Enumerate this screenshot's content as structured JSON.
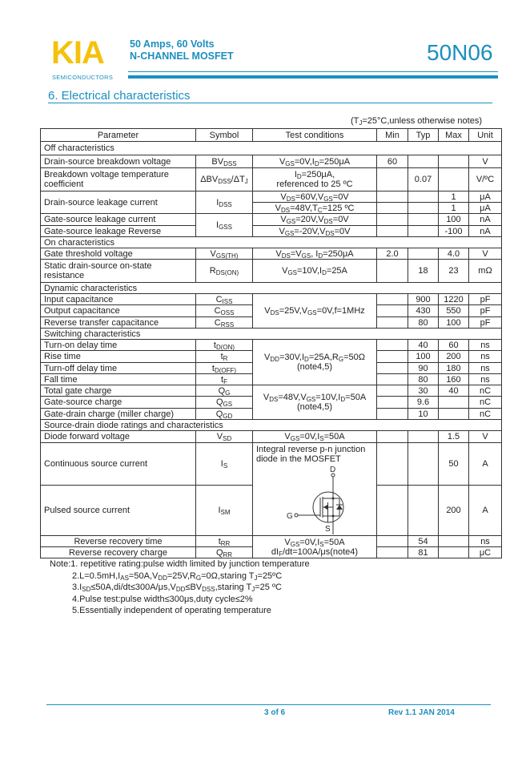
{
  "header": {
    "logo": "KIA",
    "logo_sub": "SEMICONDUCTORS",
    "subtitle_line1": "50 Amps, 60 Volts",
    "subtitle_line2": "N-CHANNEL MOSFET",
    "part_number": "50N06",
    "brand_color": "#1b8fbf",
    "logo_color": "#f4c20d"
  },
  "section_title": "6.  Electrical characteristics",
  "conditions_note": "(T_{J}=25°C,unless otherwise notes)",
  "table": {
    "columns": [
      "Parameter",
      "Symbol",
      "Test conditions",
      "Min",
      "Typ",
      "Max",
      "Unit"
    ],
    "rows": [
      {
        "section": "Off characteristics"
      },
      {
        "cells": [
          "Drain-source breakdown voltage",
          "BV_{DSS}",
          "V_{GS}=0V,I_{D}=250μA",
          "60",
          "",
          "",
          "V"
        ]
      },
      {
        "cells": [
          "Breakdown voltage temperature coefficient",
          "ΔBV_{DSS}/ΔT_{J}",
          "I_{D}=250μA,\nreferenced to 25 ºC",
          "",
          "0.07",
          "",
          "V/ºC"
        ]
      },
      {
        "cells": [
          "Drain-source leakage current",
          "I_{DSS}",
          "V_{DS}=60V,V_{GS}=0V",
          "",
          "",
          "1",
          "μA"
        ]
      },
      {
        "cells": [
          null,
          null,
          "V_{DS}=48V,T_{C}=125 ºC",
          "",
          "",
          "1",
          "μA"
        ]
      },
      {
        "cells": [
          "Gate-source leakage current",
          "I_{GSS}",
          "V_{GS}=20V,V_{DS}=0V",
          "",
          "",
          "100",
          "nA"
        ]
      },
      {
        "cells": [
          "Gate-source leakage Reverse",
          null,
          "V_{GS}=-20V,V_{DS}=0V",
          "",
          "",
          "-100",
          "nA"
        ]
      },
      {
        "section": "On characteristics"
      },
      {
        "cells": [
          "Gate threshold voltage",
          "V_{GS(TH)}",
          "V_{DS}=V_{GS}, I_{D}=250μA",
          "2.0",
          "",
          "4.0",
          "V"
        ]
      },
      {
        "cells": [
          "Static drain-source on-state resistance",
          "R_{DS(ON)}",
          "V_{GS}=10V,I_{D}=25A",
          "",
          "18",
          "23",
          "mΩ"
        ]
      },
      {
        "section": "Dynamic characteristics"
      },
      {
        "cells": [
          "Input capacitance",
          "C_{ISS}",
          "V_{DS}=25V,V_{GS}=0V,f=1MHz",
          "",
          "900",
          "1220",
          "pF"
        ]
      },
      {
        "cells": [
          "Output capacitance",
          "C_{OSS}",
          null,
          "",
          "430",
          "550",
          "pF"
        ]
      },
      {
        "cells": [
          "Reverse transfer capacitance",
          "C_{RSS}",
          null,
          "",
          "80",
          "100",
          "pF"
        ]
      },
      {
        "section": "Switching characteristics"
      },
      {
        "cells": [
          "Turn-on delay time",
          "t_{D(ON)}",
          "V_{DD}=30V,I_{D}=25A,R_{G}=50Ω\n(note4,5)",
          "",
          "40",
          "60",
          "ns"
        ]
      },
      {
        "cells": [
          "Rise time",
          "t_{R}",
          null,
          "",
          "100",
          "200",
          "ns"
        ]
      },
      {
        "cells": [
          "Turn-off delay time",
          "t_{D(OFF)}",
          null,
          "",
          "90",
          "180",
          "ns"
        ]
      },
      {
        "cells": [
          "Fall time",
          "t_{F}",
          null,
          "",
          "80",
          "160",
          "ns"
        ]
      },
      {
        "cells": [
          "Total gate charge",
          "Q_{G}",
          "V_{DS}=48V,V_{GS}=10V,I_{D}=50A\n(note4,5)",
          "",
          "30",
          "40",
          "nC"
        ]
      },
      {
        "cells": [
          "Gate-source charge",
          "Q_{GS}",
          null,
          "",
          "9.6",
          "",
          "nC"
        ]
      },
      {
        "cells": [
          "Gate-drain charge (miller charge)",
          "Q_{GD}",
          null,
          "",
          "10",
          "",
          "nC"
        ]
      },
      {
        "section": "Source-drain diode ratings and characteristics"
      },
      {
        "cells": [
          "Diode forward voltage",
          "V_{SD}",
          "V_{GS}=0V,I_{S}=50A",
          "",
          "",
          "1.5",
          "V"
        ]
      },
      {
        "cells": [
          "Continuous source current",
          "I_{S}",
          "Integral reverse p-n junction diode in the MOSFET",
          "",
          "",
          "50",
          "A"
        ],
        "diagram": true
      },
      {
        "cells": [
          "Pulsed source current",
          "I_{SM}",
          null,
          "",
          "",
          "200",
          "A"
        ]
      },
      {
        "cells": [
          "Reverse recovery time",
          "t_{RR}",
          "V_{GS}=0V,I_{S}=50A\ndI_{F}/dt=100A/μs(note4)",
          "",
          "54",
          "",
          "ns"
        ],
        "center_param": true
      },
      {
        "cells": [
          "Reverse recovery charge",
          "Q_{RR}",
          null,
          "",
          "81",
          "",
          "μC"
        ],
        "center_param": true
      }
    ]
  },
  "diagram": {
    "drain": "D",
    "gate": "G",
    "source": "S"
  },
  "notes": [
    "Note:1. repetitive rating:pulse width limited by junction temperature",
    "2.L=0.5mH,I_{AS}=50A,V_{DD}=25V,R_{G}=0Ω,staring T_{J}=25ºC",
    "3.I_{SD}≤50A,di/dt≤300A/μs,V_{DD}≤BV_{DSS},staring T_{J}=25 ºC",
    "4.Pulse test:pulse width≤300μs,duty cycle≤2%",
    "5.Essentially independent of operating temperature"
  ],
  "footer": {
    "page": "3 of 6",
    "revision": "Rev 1.1 JAN 2014"
  }
}
